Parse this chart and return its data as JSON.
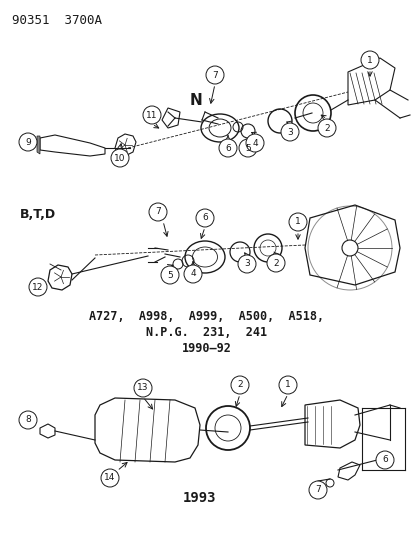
{
  "title": "90351  3700A",
  "bg_color": "#ffffff",
  "text_color": "#1a1a1a",
  "section1_label": "N",
  "section2_label": "B,T,D",
  "middle_text_line1": "A727,  A998,  A999,  A500,  A518,",
  "middle_text_line2": "N.P.G.  231,  241",
  "middle_text_line3": "1990–92",
  "bottom_year": "1993",
  "lc": "#1a1a1a",
  "lw": 0.8
}
